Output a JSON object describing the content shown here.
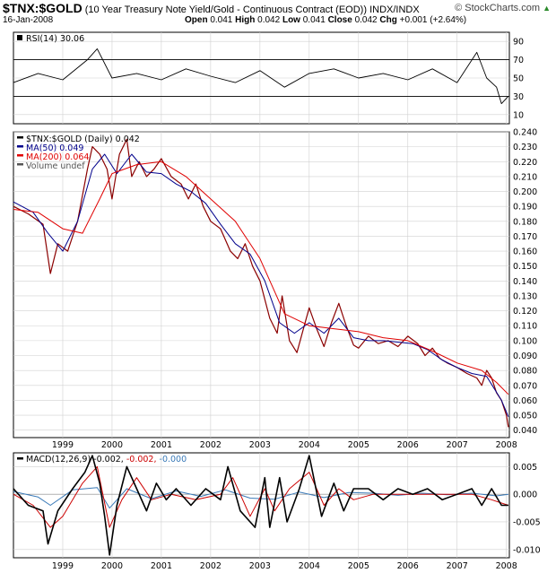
{
  "header": {
    "symbol": "$TNX:$GOLD",
    "description": "(10 Year Treasury Note Yield/Gold - Continuous Contract (EOD))",
    "exchange": "INDX/INDX",
    "date": "16-Jan-2008",
    "open_label": "Open",
    "open_value": "0.041",
    "high_label": "High",
    "high_value": "0.042",
    "low_label": "Low",
    "low_value": "0.041",
    "close_label": "Close",
    "close_value": "0.042",
    "chg_label": "Chg",
    "chg_value": "+0.001 (+2.64%)",
    "credit": "© StockCharts.com",
    "credit_arrow": "▲"
  },
  "colors": {
    "price": "#8b0000",
    "ma50": "#00008b",
    "ma200": "#e00000",
    "macd_line": "#000000",
    "macd_signal": "#cc0000",
    "macd_hist": "#3a7ab8",
    "grid": "#d0d0d0"
  },
  "chart_data": [
    {
      "type": "line",
      "panel": "rsi",
      "legend": "RSI(14) 30.06",
      "ylim": [
        0,
        100
      ],
      "yticks": [
        10,
        30,
        50,
        70,
        90
      ],
      "reference_lines": [
        30,
        70
      ],
      "grid": true,
      "series": [
        {
          "name": "RSI(14)",
          "color": "#000000",
          "x": [
            1998.0,
            1998.5,
            1999.0,
            1999.5,
            1999.7,
            2000.0,
            2000.5,
            2001.0,
            2001.5,
            2002.0,
            2002.5,
            2003.0,
            2003.5,
            2004.0,
            2004.5,
            2005.0,
            2005.5,
            2006.0,
            2006.5,
            2007.0,
            2007.4,
            2007.6,
            2007.8,
            2007.9,
            2008.04
          ],
          "y": [
            45,
            55,
            48,
            70,
            82,
            50,
            55,
            48,
            60,
            52,
            45,
            58,
            40,
            55,
            60,
            50,
            55,
            48,
            60,
            45,
            78,
            50,
            40,
            22,
            30.06
          ]
        }
      ]
    },
    {
      "type": "line",
      "panel": "price",
      "legend": [
        "$TNX:$GOLD (Daily) 0.042",
        "MA(50) 0.049",
        "MA(200) 0.064",
        "Volume undef"
      ],
      "ylim": [
        0.035,
        0.24
      ],
      "yticks": [
        0.04,
        0.05,
        0.06,
        0.07,
        0.08,
        0.09,
        0.1,
        0.11,
        0.12,
        0.13,
        0.14,
        0.15,
        0.16,
        0.17,
        0.18,
        0.19,
        0.2,
        0.21,
        0.22,
        0.23,
        0.24
      ],
      "ytick_labels": [
        "0.040",
        "0.050",
        "0.060",
        "0.070",
        "0.080",
        "0.090",
        "0.100",
        "0.110",
        "0.120",
        "0.130",
        "0.140",
        "0.150",
        "0.160",
        "0.170",
        "0.180",
        "0.190",
        "0.200",
        "0.210",
        "0.220",
        "0.230",
        "0.240"
      ],
      "grid": true,
      "series": [
        {
          "name": "$TNX:$GOLD",
          "color": "#8b0000",
          "x": [
            1998.0,
            1998.3,
            1998.6,
            1998.75,
            1998.9,
            1999.1,
            1999.3,
            1999.5,
            1999.6,
            1999.75,
            1999.9,
            2000.0,
            2000.15,
            2000.3,
            2000.4,
            2000.55,
            2000.7,
            2000.85,
            2001.0,
            2001.2,
            2001.4,
            2001.55,
            2001.7,
            2001.85,
            2002.0,
            2002.2,
            2002.4,
            2002.55,
            2002.7,
            2002.85,
            2003.0,
            2003.2,
            2003.35,
            2003.45,
            2003.6,
            2003.75,
            2003.9,
            2004.0,
            2004.15,
            2004.3,
            2004.45,
            2004.6,
            2004.75,
            2004.9,
            2005.0,
            2005.2,
            2005.4,
            2005.6,
            2005.8,
            2006.0,
            2006.2,
            2006.35,
            2006.5,
            2006.65,
            2006.8,
            2007.0,
            2007.2,
            2007.4,
            2007.5,
            2007.6,
            2007.7,
            2007.8,
            2007.9,
            2008.0,
            2008.04
          ],
          "y": [
            0.19,
            0.185,
            0.178,
            0.145,
            0.165,
            0.16,
            0.18,
            0.215,
            0.23,
            0.225,
            0.215,
            0.195,
            0.225,
            0.235,
            0.21,
            0.22,
            0.21,
            0.215,
            0.222,
            0.21,
            0.205,
            0.195,
            0.205,
            0.19,
            0.18,
            0.175,
            0.16,
            0.155,
            0.165,
            0.15,
            0.14,
            0.115,
            0.105,
            0.13,
            0.1,
            0.092,
            0.11,
            0.122,
            0.108,
            0.096,
            0.112,
            0.125,
            0.11,
            0.097,
            0.095,
            0.103,
            0.098,
            0.1,
            0.096,
            0.103,
            0.098,
            0.09,
            0.095,
            0.088,
            0.085,
            0.082,
            0.078,
            0.075,
            0.07,
            0.08,
            0.075,
            0.065,
            0.06,
            0.05,
            0.042
          ]
        },
        {
          "name": "MA(50)",
          "color": "#00008b",
          "x": [
            1998.0,
            1998.4,
            1998.7,
            1999.0,
            1999.3,
            1999.6,
            1999.85,
            2000.1,
            2000.4,
            2000.7,
            2001.0,
            2001.3,
            2001.6,
            2001.9,
            2002.2,
            2002.5,
            2002.8,
            2003.1,
            2003.4,
            2003.7,
            2004.0,
            2004.3,
            2004.6,
            2004.9,
            2005.2,
            2005.5,
            2005.8,
            2006.1,
            2006.4,
            2006.7,
            2007.0,
            2007.3,
            2007.6,
            2007.9,
            2008.04
          ],
          "y": [
            0.193,
            0.186,
            0.172,
            0.16,
            0.18,
            0.215,
            0.225,
            0.212,
            0.225,
            0.213,
            0.212,
            0.205,
            0.2,
            0.192,
            0.178,
            0.165,
            0.158,
            0.14,
            0.112,
            0.105,
            0.112,
            0.105,
            0.115,
            0.102,
            0.1,
            0.1,
            0.099,
            0.098,
            0.094,
            0.087,
            0.082,
            0.078,
            0.076,
            0.06,
            0.049
          ]
        },
        {
          "name": "MA(200)",
          "color": "#e00000",
          "x": [
            1998.0,
            1998.5,
            1999.0,
            1999.4,
            1999.75,
            2000.0,
            2000.5,
            2001.0,
            2001.5,
            2002.0,
            2002.5,
            2003.0,
            2003.5,
            2004.0,
            2004.5,
            2005.0,
            2005.5,
            2006.0,
            2006.5,
            2007.0,
            2007.5,
            2007.8,
            2008.04
          ],
          "y": [
            0.188,
            0.186,
            0.175,
            0.172,
            0.195,
            0.212,
            0.218,
            0.22,
            0.21,
            0.195,
            0.18,
            0.155,
            0.118,
            0.11,
            0.108,
            0.106,
            0.102,
            0.1,
            0.093,
            0.085,
            0.08,
            0.072,
            0.064
          ]
        }
      ]
    },
    {
      "type": "line",
      "panel": "macd",
      "legend": {
        "label": "MACD(12,26,9)",
        "macd": "-0.002,",
        "signal": "-0.002,",
        "hist": "-0.000"
      },
      "ylim": [
        -0.0115,
        0.0075
      ],
      "yticks": [
        -0.01,
        -0.005,
        0.0,
        0.005
      ],
      "ytick_labels": [
        "-0.010",
        "-0.005",
        "0.000",
        "0.005"
      ],
      "grid": true,
      "series": [
        {
          "name": "MACD",
          "color": "#000000",
          "x": [
            1998.0,
            1998.3,
            1998.6,
            1998.7,
            1998.9,
            1999.2,
            1999.45,
            1999.6,
            1999.75,
            1999.85,
            1999.95,
            2000.1,
            2000.3,
            2000.5,
            2000.7,
            2000.9,
            2001.1,
            2001.3,
            2001.6,
            2001.9,
            2002.2,
            2002.35,
            2002.6,
            2002.9,
            2003.1,
            2003.2,
            2003.4,
            2003.55,
            2003.8,
            2004.0,
            2004.25,
            2004.5,
            2004.7,
            2004.9,
            2005.2,
            2005.5,
            2005.8,
            2006.1,
            2006.4,
            2006.7,
            2007.0,
            2007.3,
            2007.5,
            2007.7,
            2007.9,
            2008.04
          ],
          "y": [
            0.001,
            -0.002,
            -0.003,
            -0.009,
            -0.003,
            0.001,
            0.004,
            0.007,
            0.002,
            -0.004,
            -0.011,
            -0.002,
            0.005,
            0.001,
            -0.003,
            0.002,
            -0.001,
            0.001,
            -0.002,
            0.001,
            -0.001,
            0.005,
            -0.003,
            -0.006,
            0.003,
            -0.006,
            0.003,
            -0.005,
            0.001,
            0.007,
            -0.004,
            0.002,
            -0.003,
            0.001,
            0.001,
            -0.001,
            0.001,
            0.0,
            0.001,
            -0.001,
            0.0,
            0.001,
            -0.002,
            0.001,
            -0.002,
            -0.002
          ]
        },
        {
          "name": "Signal",
          "color": "#cc0000",
          "x": [
            1998.0,
            1998.4,
            1998.75,
            1999.0,
            1999.4,
            1999.7,
            1999.95,
            2000.2,
            2000.5,
            2000.8,
            2001.2,
            2001.7,
            2002.2,
            2002.45,
            2002.8,
            2003.1,
            2003.3,
            2003.6,
            2004.0,
            2004.3,
            2004.6,
            2004.9,
            2005.3,
            2005.7,
            2006.1,
            2006.5,
            2006.9,
            2007.3,
            2007.7,
            2008.04
          ],
          "y": [
            0.0,
            -0.002,
            -0.006,
            -0.004,
            0.002,
            0.005,
            -0.006,
            -0.001,
            0.003,
            -0.001,
            0.0,
            -0.001,
            0.0,
            0.003,
            -0.004,
            0.001,
            -0.003,
            0.001,
            0.004,
            -0.002,
            0.001,
            -0.001,
            0.0,
            0.0,
            0.0,
            0.0,
            0.0,
            0.0,
            -0.001,
            -0.002
          ]
        },
        {
          "name": "Histogram",
          "color": "#3a7ab8",
          "x": [
            1998.0,
            1998.5,
            1998.75,
            1999.2,
            1999.7,
            1999.95,
            2000.3,
            2000.8,
            2001.3,
            2001.8,
            2002.3,
            2002.8,
            2003.3,
            2003.8,
            2004.3,
            2004.8,
            2005.3,
            2005.8,
            2006.3,
            2006.8,
            2007.3,
            2007.8,
            2008.04
          ],
          "y": [
            0.0005,
            -0.0005,
            -0.002,
            0.0008,
            0.0012,
            -0.0025,
            0.001,
            -0.0008,
            0.0006,
            -0.0004,
            0.0008,
            -0.0007,
            -0.0009,
            0.0004,
            -0.0006,
            0.0003,
            0.0002,
            -0.0002,
            0.0002,
            -0.0001,
            0.0002,
            -0.0003,
            0.0
          ]
        }
      ]
    }
  ],
  "x_axis": {
    "labels": [
      "1999",
      "2000",
      "2001",
      "2002",
      "2003",
      "2004",
      "2005",
      "2006",
      "2007",
      "2008"
    ],
    "values": [
      1999,
      2000,
      2001,
      2002,
      2003,
      2004,
      2005,
      2006,
      2007,
      2008
    ],
    "xlim": [
      1998.0,
      2008.06
    ]
  }
}
